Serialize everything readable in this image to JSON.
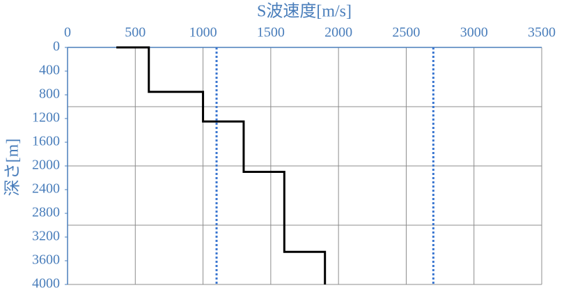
{
  "chart_data": {
    "type": "line",
    "title": "S波速度[m/s]",
    "y_label": "深さ[m]",
    "xlim": [
      0,
      3500
    ],
    "xticks": [
      0,
      500,
      1000,
      1500,
      2000,
      2500,
      3000,
      3500
    ],
    "ylim": [
      0,
      4000
    ],
    "yticks": [
      0,
      400,
      800,
      1200,
      1600,
      2000,
      2400,
      2800,
      3200,
      3600,
      4000
    ],
    "y_inverted": true,
    "x_grid": true,
    "y_grid_lines": [
      1000,
      2000,
      3000
    ],
    "series": [
      {
        "color": "#000000",
        "dashed": false,
        "x": [
          360,
          600,
          600,
          1000,
          1000,
          1300,
          1300,
          1600,
          1600,
          1900,
          1900
        ],
        "y": [
          0,
          0,
          750,
          750,
          1250,
          1250,
          2100,
          2100,
          3450,
          3450,
          4000
        ]
      },
      {
        "color": "#3a76d0",
        "dashed": true,
        "x": [
          1100,
          1100
        ],
        "y": [
          0,
          4000
        ]
      },
      {
        "color": "#3a76d0",
        "dashed": true,
        "x": [
          2700,
          2700
        ],
        "y": [
          0,
          4000
        ]
      }
    ]
  }
}
